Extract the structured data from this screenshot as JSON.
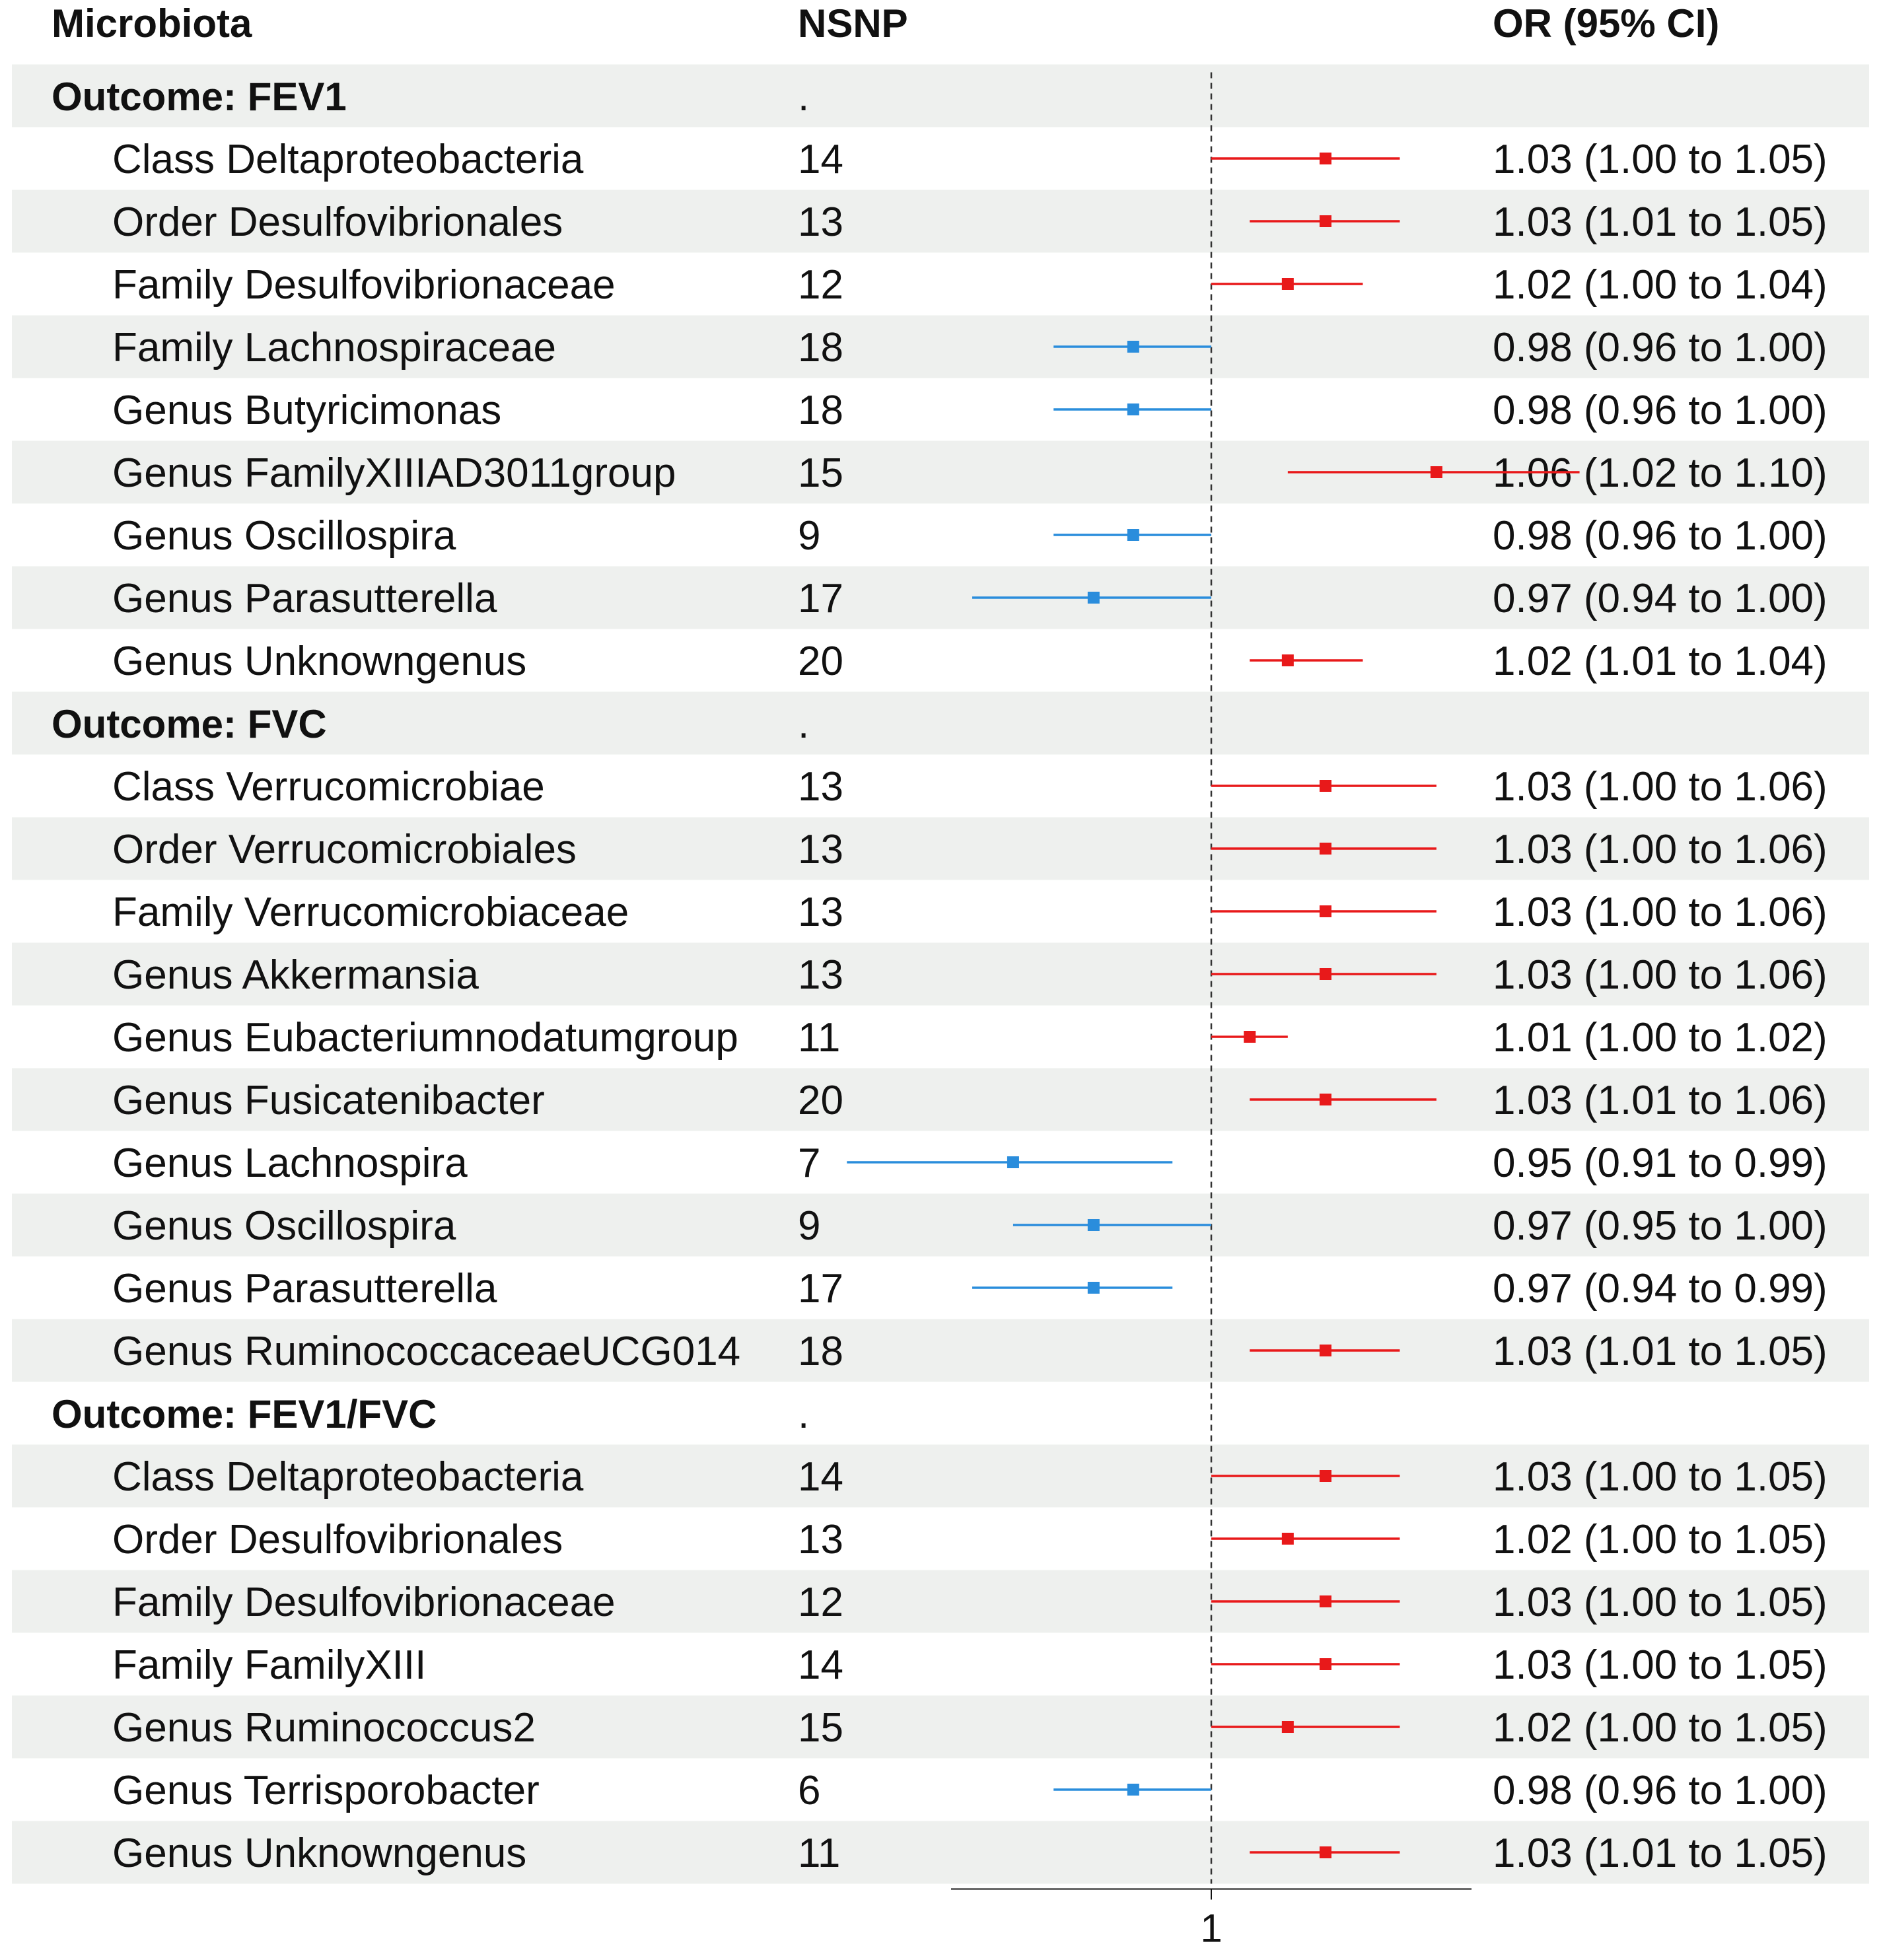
{
  "header": {
    "col_microbiota": "Microbiota",
    "col_nsnp": "NSNP",
    "col_or": "OR (95% CI)"
  },
  "colors": {
    "positive": "#e8191a",
    "negative": "#2a8ddc",
    "band": "#eef0ee",
    "reference_line": "#333333",
    "text": "#111111"
  },
  "chart_data": {
    "type": "forest",
    "title": "",
    "xlabel": "",
    "x_scale": "log",
    "xlim": [
      0.85,
      1.15
    ],
    "reference_value": 1,
    "x_tick_labels": [
      "1"
    ],
    "rows": [
      {
        "kind": "group",
        "label": "Outcome: FEV1",
        "nsnp": ".",
        "or_text": ""
      },
      {
        "kind": "item",
        "label": "Class Deltaproteobacteria",
        "nsnp": "14",
        "or": 1.03,
        "lo": 1.0,
        "hi": 1.05,
        "or_text": "1.03 (1.00 to 1.05)"
      },
      {
        "kind": "item",
        "label": "Order Desulfovibrionales",
        "nsnp": "13",
        "or": 1.03,
        "lo": 1.01,
        "hi": 1.05,
        "or_text": "1.03 (1.01 to 1.05)"
      },
      {
        "kind": "item",
        "label": "Family Desulfovibrionaceae",
        "nsnp": "12",
        "or": 1.02,
        "lo": 1.0,
        "hi": 1.04,
        "or_text": "1.02 (1.00 to 1.04)"
      },
      {
        "kind": "item",
        "label": "Family Lachnospiraceae",
        "nsnp": "18",
        "or": 0.98,
        "lo": 0.96,
        "hi": 1.0,
        "or_text": "0.98 (0.96 to 1.00)"
      },
      {
        "kind": "item",
        "label": "Genus Butyricimonas",
        "nsnp": "18",
        "or": 0.98,
        "lo": 0.96,
        "hi": 1.0,
        "or_text": "0.98 (0.96 to 1.00)"
      },
      {
        "kind": "item",
        "label": "Genus FamilyXIIIAD3011group",
        "nsnp": "15",
        "or": 1.06,
        "lo": 1.02,
        "hi": 1.1,
        "or_text": "1.06 (1.02 to 1.10)"
      },
      {
        "kind": "item",
        "label": "Genus Oscillospira",
        "nsnp": "9",
        "or": 0.98,
        "lo": 0.96,
        "hi": 1.0,
        "or_text": "0.98 (0.96 to 1.00)"
      },
      {
        "kind": "item",
        "label": "Genus Parasutterella",
        "nsnp": "17",
        "or": 0.97,
        "lo": 0.94,
        "hi": 1.0,
        "or_text": "0.97 (0.94 to 1.00)"
      },
      {
        "kind": "item",
        "label": "Genus Unknowngenus",
        "nsnp": "20",
        "or": 1.02,
        "lo": 1.01,
        "hi": 1.04,
        "or_text": "1.02 (1.01 to 1.04)"
      },
      {
        "kind": "group",
        "label": "Outcome: FVC",
        "nsnp": ".",
        "or_text": ""
      },
      {
        "kind": "item",
        "label": "Class Verrucomicrobiae",
        "nsnp": "13",
        "or": 1.03,
        "lo": 1.0,
        "hi": 1.06,
        "or_text": "1.03 (1.00 to 1.06)"
      },
      {
        "kind": "item",
        "label": "Order Verrucomicrobiales",
        "nsnp": "13",
        "or": 1.03,
        "lo": 1.0,
        "hi": 1.06,
        "or_text": "1.03 (1.00 to 1.06)"
      },
      {
        "kind": "item",
        "label": "Family Verrucomicrobiaceae",
        "nsnp": "13",
        "or": 1.03,
        "lo": 1.0,
        "hi": 1.06,
        "or_text": "1.03 (1.00 to 1.06)"
      },
      {
        "kind": "item",
        "label": "Genus Akkermansia",
        "nsnp": "13",
        "or": 1.03,
        "lo": 1.0,
        "hi": 1.06,
        "or_text": "1.03 (1.00 to 1.06)"
      },
      {
        "kind": "item",
        "label": "Genus Eubacteriumnodatumgroup",
        "nsnp": "11",
        "or": 1.01,
        "lo": 1.0,
        "hi": 1.02,
        "or_text": "1.01 (1.00 to 1.02)"
      },
      {
        "kind": "item",
        "label": "Genus Fusicatenibacter",
        "nsnp": "20",
        "or": 1.03,
        "lo": 1.01,
        "hi": 1.06,
        "or_text": "1.03 (1.01 to 1.06)"
      },
      {
        "kind": "item",
        "label": "Genus Lachnospira",
        "nsnp": "7",
        "or": 0.95,
        "lo": 0.91,
        "hi": 0.99,
        "or_text": "0.95 (0.91 to 0.99)"
      },
      {
        "kind": "item",
        "label": "Genus Oscillospira",
        "nsnp": "9",
        "or": 0.97,
        "lo": 0.95,
        "hi": 1.0,
        "or_text": "0.97 (0.95 to 1.00)"
      },
      {
        "kind": "item",
        "label": "Genus Parasutterella",
        "nsnp": "17",
        "or": 0.97,
        "lo": 0.94,
        "hi": 0.99,
        "or_text": "0.97 (0.94 to 0.99)"
      },
      {
        "kind": "item",
        "label": "Genus RuminococcaceaeUCG014",
        "nsnp": "18",
        "or": 1.03,
        "lo": 1.01,
        "hi": 1.05,
        "or_text": "1.03 (1.01 to 1.05)"
      },
      {
        "kind": "group",
        "label": "Outcome: FEV1/FVC",
        "nsnp": ".",
        "or_text": ""
      },
      {
        "kind": "item",
        "label": "Class Deltaproteobacteria",
        "nsnp": "14",
        "or": 1.03,
        "lo": 1.0,
        "hi": 1.05,
        "or_text": "1.03 (1.00 to 1.05)"
      },
      {
        "kind": "item",
        "label": "Order Desulfovibrionales",
        "nsnp": "13",
        "or": 1.02,
        "lo": 1.0,
        "hi": 1.05,
        "or_text": "1.02 (1.00 to 1.05)"
      },
      {
        "kind": "item",
        "label": "Family Desulfovibrionaceae",
        "nsnp": "12",
        "or": 1.03,
        "lo": 1.0,
        "hi": 1.05,
        "or_text": "1.03 (1.00 to 1.05)"
      },
      {
        "kind": "item",
        "label": "Family FamilyXIII",
        "nsnp": "14",
        "or": 1.03,
        "lo": 1.0,
        "hi": 1.05,
        "or_text": "1.03 (1.00 to 1.05)"
      },
      {
        "kind": "item",
        "label": "Genus Ruminococcus2",
        "nsnp": "15",
        "or": 1.02,
        "lo": 1.0,
        "hi": 1.05,
        "or_text": "1.02 (1.00 to 1.05)"
      },
      {
        "kind": "item",
        "label": "Genus Terrisporobacter",
        "nsnp": "6",
        "or": 0.98,
        "lo": 0.96,
        "hi": 1.0,
        "or_text": "0.98 (0.96 to 1.00)"
      },
      {
        "kind": "item",
        "label": "Genus Unknowngenus",
        "nsnp": "11",
        "or": 1.03,
        "lo": 1.01,
        "hi": 1.05,
        "or_text": "1.03 (1.01 to 1.05)"
      }
    ]
  }
}
